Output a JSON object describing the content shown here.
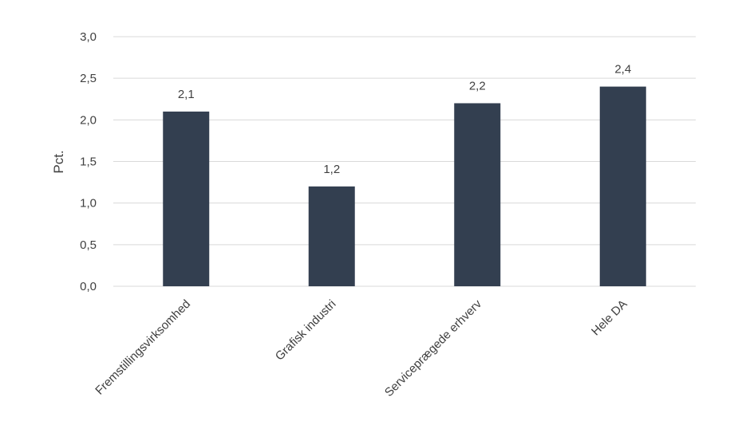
{
  "chart_data": {
    "type": "bar",
    "categories": [
      "Fremstillingsvirksomhed",
      "Grafisk industri",
      "Serviceprægede erhverv",
      "Hele DA"
    ],
    "values": [
      2.1,
      1.2,
      2.2,
      2.4
    ],
    "value_labels": [
      "2,1",
      "1,2",
      "2,2",
      "2,4"
    ],
    "ylabel": "Pct.",
    "xlabel": "",
    "title": "",
    "ylim": [
      0,
      3.0
    ],
    "yticks": [
      0,
      0.5,
      1.0,
      1.5,
      2.0,
      2.5,
      3.0
    ],
    "ytick_labels": [
      "0,0",
      "0,5",
      "1,0",
      "1,5",
      "2,0",
      "2,5",
      "3,0"
    ],
    "grid": true,
    "legend": "none",
    "bar_color": "#333f50",
    "grid_color": "#d9d9d9",
    "text_color": "#404040"
  }
}
